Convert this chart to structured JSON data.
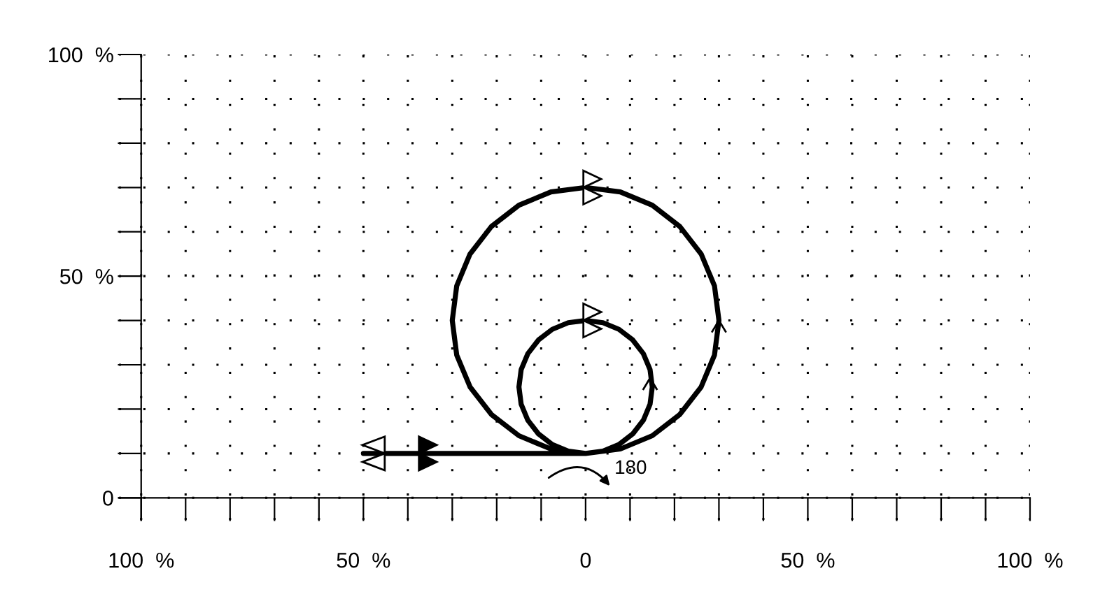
{
  "chart_data": {
    "type": "line",
    "xlim": [
      -105,
      100
    ],
    "ylim": [
      -5,
      100
    ],
    "xticks": [
      {
        "value": -100,
        "label": "100  %"
      },
      {
        "value": -90,
        "label": null
      },
      {
        "value": -80,
        "label": null
      },
      {
        "value": -70,
        "label": null
      },
      {
        "value": -60,
        "label": null
      },
      {
        "value": -50,
        "label": "50  %"
      },
      {
        "value": -40,
        "label": null
      },
      {
        "value": -30,
        "label": null
      },
      {
        "value": -20,
        "label": null
      },
      {
        "value": -10,
        "label": null
      },
      0,
      {
        "value": 10,
        "label": null
      },
      {
        "value": 20,
        "label": null
      },
      {
        "value": 30,
        "label": null
      },
      {
        "value": 40,
        "label": null
      },
      {
        "value": 50,
        "label": "50  %"
      },
      {
        "value": 60,
        "label": null
      },
      {
        "value": 70,
        "label": null
      },
      {
        "value": 80,
        "label": null
      },
      {
        "value": 90,
        "label": null
      },
      {
        "value": 100,
        "label": "100  %"
      }
    ],
    "yticks": [
      0,
      {
        "value": 10,
        "label": null
      },
      {
        "value": 20,
        "label": null
      },
      {
        "value": 30,
        "label": null
      },
      {
        "value": 40,
        "label": null
      },
      {
        "value": 50,
        "label": "50  %"
      },
      {
        "value": 60,
        "label": null
      },
      {
        "value": 70,
        "label": null
      },
      {
        "value": 80,
        "label": null
      },
      {
        "value": 90,
        "label": null
      },
      {
        "value": 100,
        "label": "100  %"
      }
    ],
    "grid": true,
    "marker": "none",
    "line_style": "solid",
    "annotations": [
      "180"
    ],
    "series": [
      {
        "color": "#000000",
        "x": [
          -50,
          0,
          3.9,
          7.5,
          10.6,
          13,
          14.5,
          15,
          14.5,
          13,
          10.6,
          7.5,
          3.9,
          0,
          -3.9,
          -7.5,
          -10.6,
          -13,
          -14.5,
          -15,
          -14.5,
          -13,
          -10.6,
          -7.5,
          -3.9,
          0,
          7.8,
          15,
          21.2,
          26,
          29,
          30,
          29,
          26,
          21.2,
          15,
          7.8,
          0,
          -7.8,
          -15,
          -21.2,
          -26,
          -29,
          -30,
          -29,
          -26,
          -21.2,
          -15,
          -7.8,
          0
        ],
        "values": [
          10,
          10,
          10.5,
          12,
          14.4,
          17.5,
          21.1,
          25,
          28.9,
          32.5,
          35.6,
          38,
          39.5,
          40,
          39.5,
          38,
          35.6,
          32.5,
          28.9,
          25,
          21.1,
          17.5,
          14.4,
          12,
          10.5,
          10,
          11,
          14,
          18.8,
          25,
          32.2,
          40,
          47.8,
          55,
          61.2,
          66,
          69,
          70,
          69,
          66,
          61.2,
          55,
          47.8,
          40,
          32.2,
          25,
          18.8,
          14,
          11,
          10
        ]
      }
    ]
  }
}
